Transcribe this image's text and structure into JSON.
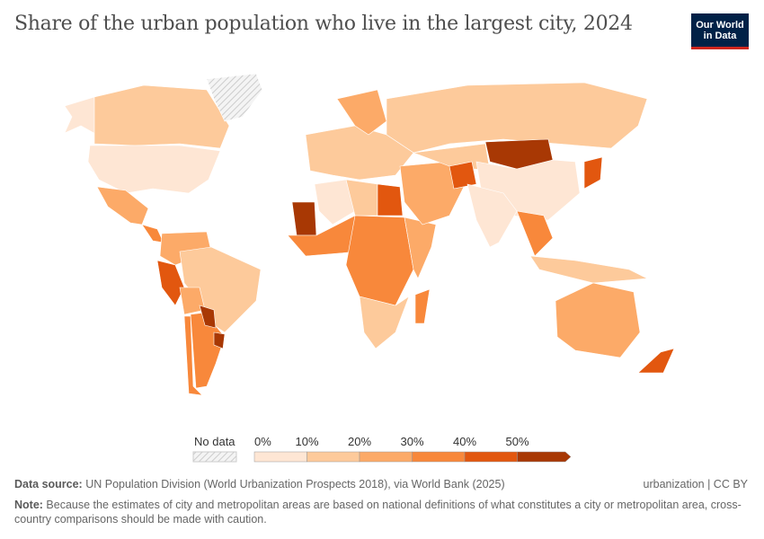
{
  "header": {
    "title": "Share of the urban population who live in the largest city, 2024",
    "logo_line1": "Our World",
    "logo_line2": "in Data"
  },
  "legend": {
    "no_data_label": "No data",
    "ticks": [
      "0%",
      "10%",
      "20%",
      "30%",
      "40%",
      "50%"
    ],
    "bins": [
      {
        "range": "0-10%",
        "color": "#fee6d4"
      },
      {
        "range": "10-20%",
        "color": "#fdca9b"
      },
      {
        "range": "20-30%",
        "color": "#fcaa68"
      },
      {
        "range": "30-40%",
        "color": "#f8883b"
      },
      {
        "range": "40-50%",
        "color": "#e2570f"
      },
      {
        "range": ">50%",
        "color": "#a83804"
      }
    ],
    "no_data_color": "#eeeeee"
  },
  "map_regions": [
    {
      "name": "Alaska",
      "bin": 0
    },
    {
      "name": "Canada",
      "bin": 1
    },
    {
      "name": "United States",
      "bin": 0
    },
    {
      "name": "Greenland",
      "bin": null
    },
    {
      "name": "Mexico",
      "bin": 2
    },
    {
      "name": "Central America",
      "bin": 3
    },
    {
      "name": "Colombia/Venezuela",
      "bin": 2
    },
    {
      "name": "Brazil",
      "bin": 1
    },
    {
      "name": "Peru",
      "bin": 4
    },
    {
      "name": "Bolivia",
      "bin": 2
    },
    {
      "name": "Argentina",
      "bin": 3
    },
    {
      "name": "Chile",
      "bin": 3
    },
    {
      "name": "Paraguay",
      "bin": 5
    },
    {
      "name": "Uruguay",
      "bin": 5
    },
    {
      "name": "Russia",
      "bin": 1
    },
    {
      "name": "Europe",
      "bin": 1
    },
    {
      "name": "Northern Europe",
      "bin": 2
    },
    {
      "name": "Algeria",
      "bin": 0
    },
    {
      "name": "Libya",
      "bin": 1
    },
    {
      "name": "Egypt",
      "bin": 4
    },
    {
      "name": "Mauritania",
      "bin": 5
    },
    {
      "name": "West Africa",
      "bin": 3
    },
    {
      "name": "Central Africa",
      "bin": 3
    },
    {
      "name": "East Africa",
      "bin": 2
    },
    {
      "name": "Southern Africa",
      "bin": 1
    },
    {
      "name": "Madagascar",
      "bin": 3
    },
    {
      "name": "Middle East",
      "bin": 2
    },
    {
      "name": "Central Asia",
      "bin": 1
    },
    {
      "name": "Afghanistan",
      "bin": 4
    },
    {
      "name": "China",
      "bin": 0
    },
    {
      "name": "Mongolia",
      "bin": 5
    },
    {
      "name": "India",
      "bin": 0
    },
    {
      "name": "Southeast Asia",
      "bin": 3
    },
    {
      "name": "Japan",
      "bin": 4
    },
    {
      "name": "Indonesia",
      "bin": 1
    },
    {
      "name": "Australia",
      "bin": 2
    },
    {
      "name": "New Zealand",
      "bin": 4
    }
  ],
  "footer": {
    "source_label": "Data source:",
    "source_text": " UN Population Division (World Urbanization Prospects 2018), via World Bank (2025)",
    "note_label": "Note:",
    "note_text": " Because the estimates of city and metropolitan areas are based on national definitions of what constitutes a city or metropolitan area, cross-country comparisons should be made with caution.",
    "license": "urbanization | CC BY"
  }
}
